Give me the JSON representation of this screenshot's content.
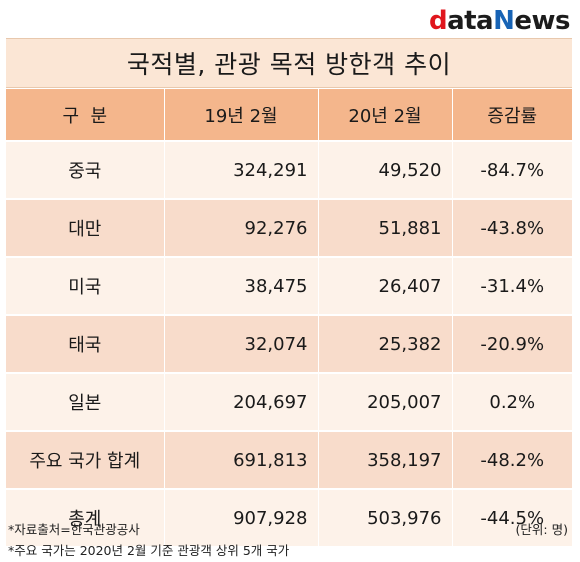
{
  "logo": {
    "d": "d",
    "ata": "ata",
    "n": "N",
    "ews": "ews"
  },
  "title": "국적별, 관광 목적 방한객 추이",
  "table": {
    "headers": [
      "구  분",
      "19년 2월",
      "20년 2월",
      "증감률"
    ],
    "rows": [
      {
        "name": "중국",
        "y19": "324,291",
        "y20": "49,520",
        "rate": "-84.7%"
      },
      {
        "name": "대만",
        "y19": "92,276",
        "y20": "51,881",
        "rate": "-43.8%"
      },
      {
        "name": "미국",
        "y19": "38,475",
        "y20": "26,407",
        "rate": "-31.4%"
      },
      {
        "name": "태국",
        "y19": "32,074",
        "y20": "25,382",
        "rate": "-20.9%"
      },
      {
        "name": "일본",
        "y19": "204,697",
        "y20": "205,007",
        "rate": "0.2%"
      },
      {
        "name": "주요 국가 합계",
        "y19": "691,813",
        "y20": "358,197",
        "rate": "-48.2%"
      },
      {
        "name": "총계",
        "y19": "907,928",
        "y20": "503,976",
        "rate": "-44.5%"
      }
    ]
  },
  "notes": {
    "source": "*자료출처=한국관광공사",
    "countries": "*주요 국가는 2020년 2월 기준 관광객 상위 5개 국가",
    "unit": "(단위: 명)"
  },
  "colors": {
    "header_bg": "#f4b68c",
    "title_bg": "#fbe6d5",
    "row_light": "#fdf2e9",
    "row_dark": "#f8dccb",
    "logo_red": "#e0161d",
    "logo_blue": "#1763b5"
  }
}
